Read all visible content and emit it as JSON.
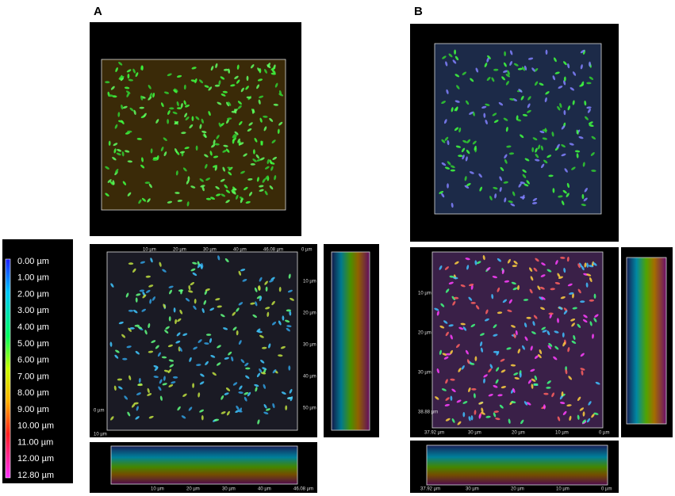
{
  "panels": [
    {
      "label": "A"
    },
    {
      "label": "B"
    }
  ],
  "legend": {
    "labels": [
      "0.00 µm",
      "1.00 µm",
      "2.00 µm",
      "3.00 µm",
      "4.00 µm",
      "5.00 µm",
      "6.00 µm",
      "7.00 µm",
      "8.00 µm",
      "9.00 µm",
      "10.00 µm",
      "11.00 µm",
      "12.00 µm",
      "12.80 µm"
    ]
  },
  "views": {
    "a_xy_top": [
      "10 µm",
      "20 µm",
      "30 µm",
      "40 µm",
      "46.08 µm",
      "0 µm"
    ],
    "a_xy_right": [
      "10 µm",
      "20 µm",
      "30 µm",
      "40 µm",
      "50 µm"
    ],
    "a_xy_left": [
      "0 µm",
      "10 µm"
    ],
    "a_xz_bottom": [
      "10 µm",
      "20 µm",
      "30 µm",
      "40 µm",
      "46.08 µm"
    ],
    "b_xy_bottom": [
      "37.92 µm",
      "30 µm",
      "20 µm",
      "10 µm",
      "0 µm"
    ],
    "b_xy_left": [
      "10 µm",
      "20 µm",
      "30 µm",
      "38.88 µm"
    ],
    "b_xz_bottom": [
      "37.92 µm",
      "30 µm",
      "20 µm",
      "10 µm",
      "0 µm"
    ]
  }
}
